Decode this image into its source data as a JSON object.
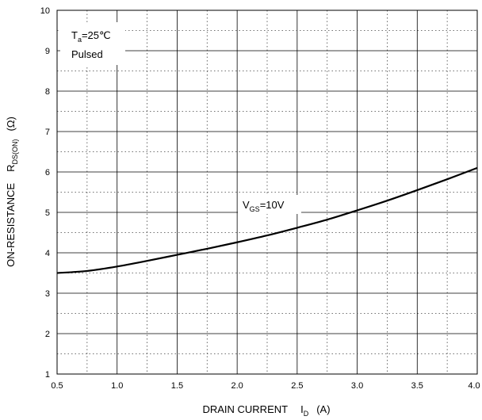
{
  "chart_data": {
    "type": "line",
    "xlabel": {
      "text": "DRAIN CURRENT",
      "symbol": "I",
      "sub": "D",
      "unit": "(A)"
    },
    "ylabel": {
      "text": "ON-RESISTANCE",
      "symbol": "R",
      "sub": "DS(ON)",
      "unit": "(Ω)"
    },
    "xlim": [
      0.5,
      4.0
    ],
    "ylim": [
      1,
      10
    ],
    "x_ticks": [
      "0.5",
      "1.0",
      "1.5",
      "2.0",
      "2.5",
      "3.0",
      "3.5",
      "4.0"
    ],
    "y_ticks": [
      "1",
      "2",
      "3",
      "4",
      "5",
      "6",
      "7",
      "8",
      "9",
      "10"
    ],
    "grid": true,
    "annotations": {
      "condition_1": {
        "symbol": "T",
        "sub": "a",
        "rest": "=25℃"
      },
      "condition_2": "Pulsed",
      "series_label": {
        "symbol": "V",
        "sub": "GS",
        "rest": "=10V"
      }
    },
    "series": [
      {
        "x": [
          0.5,
          0.75,
          1.0,
          1.25,
          1.5,
          1.75,
          2.0,
          2.25,
          2.5,
          2.75,
          3.0,
          3.25,
          3.5,
          3.75,
          4.0
        ],
        "y": [
          3.5,
          3.55,
          3.66,
          3.8,
          3.95,
          4.1,
          4.26,
          4.43,
          4.62,
          4.82,
          5.05,
          5.29,
          5.55,
          5.82,
          6.1
        ]
      }
    ]
  }
}
